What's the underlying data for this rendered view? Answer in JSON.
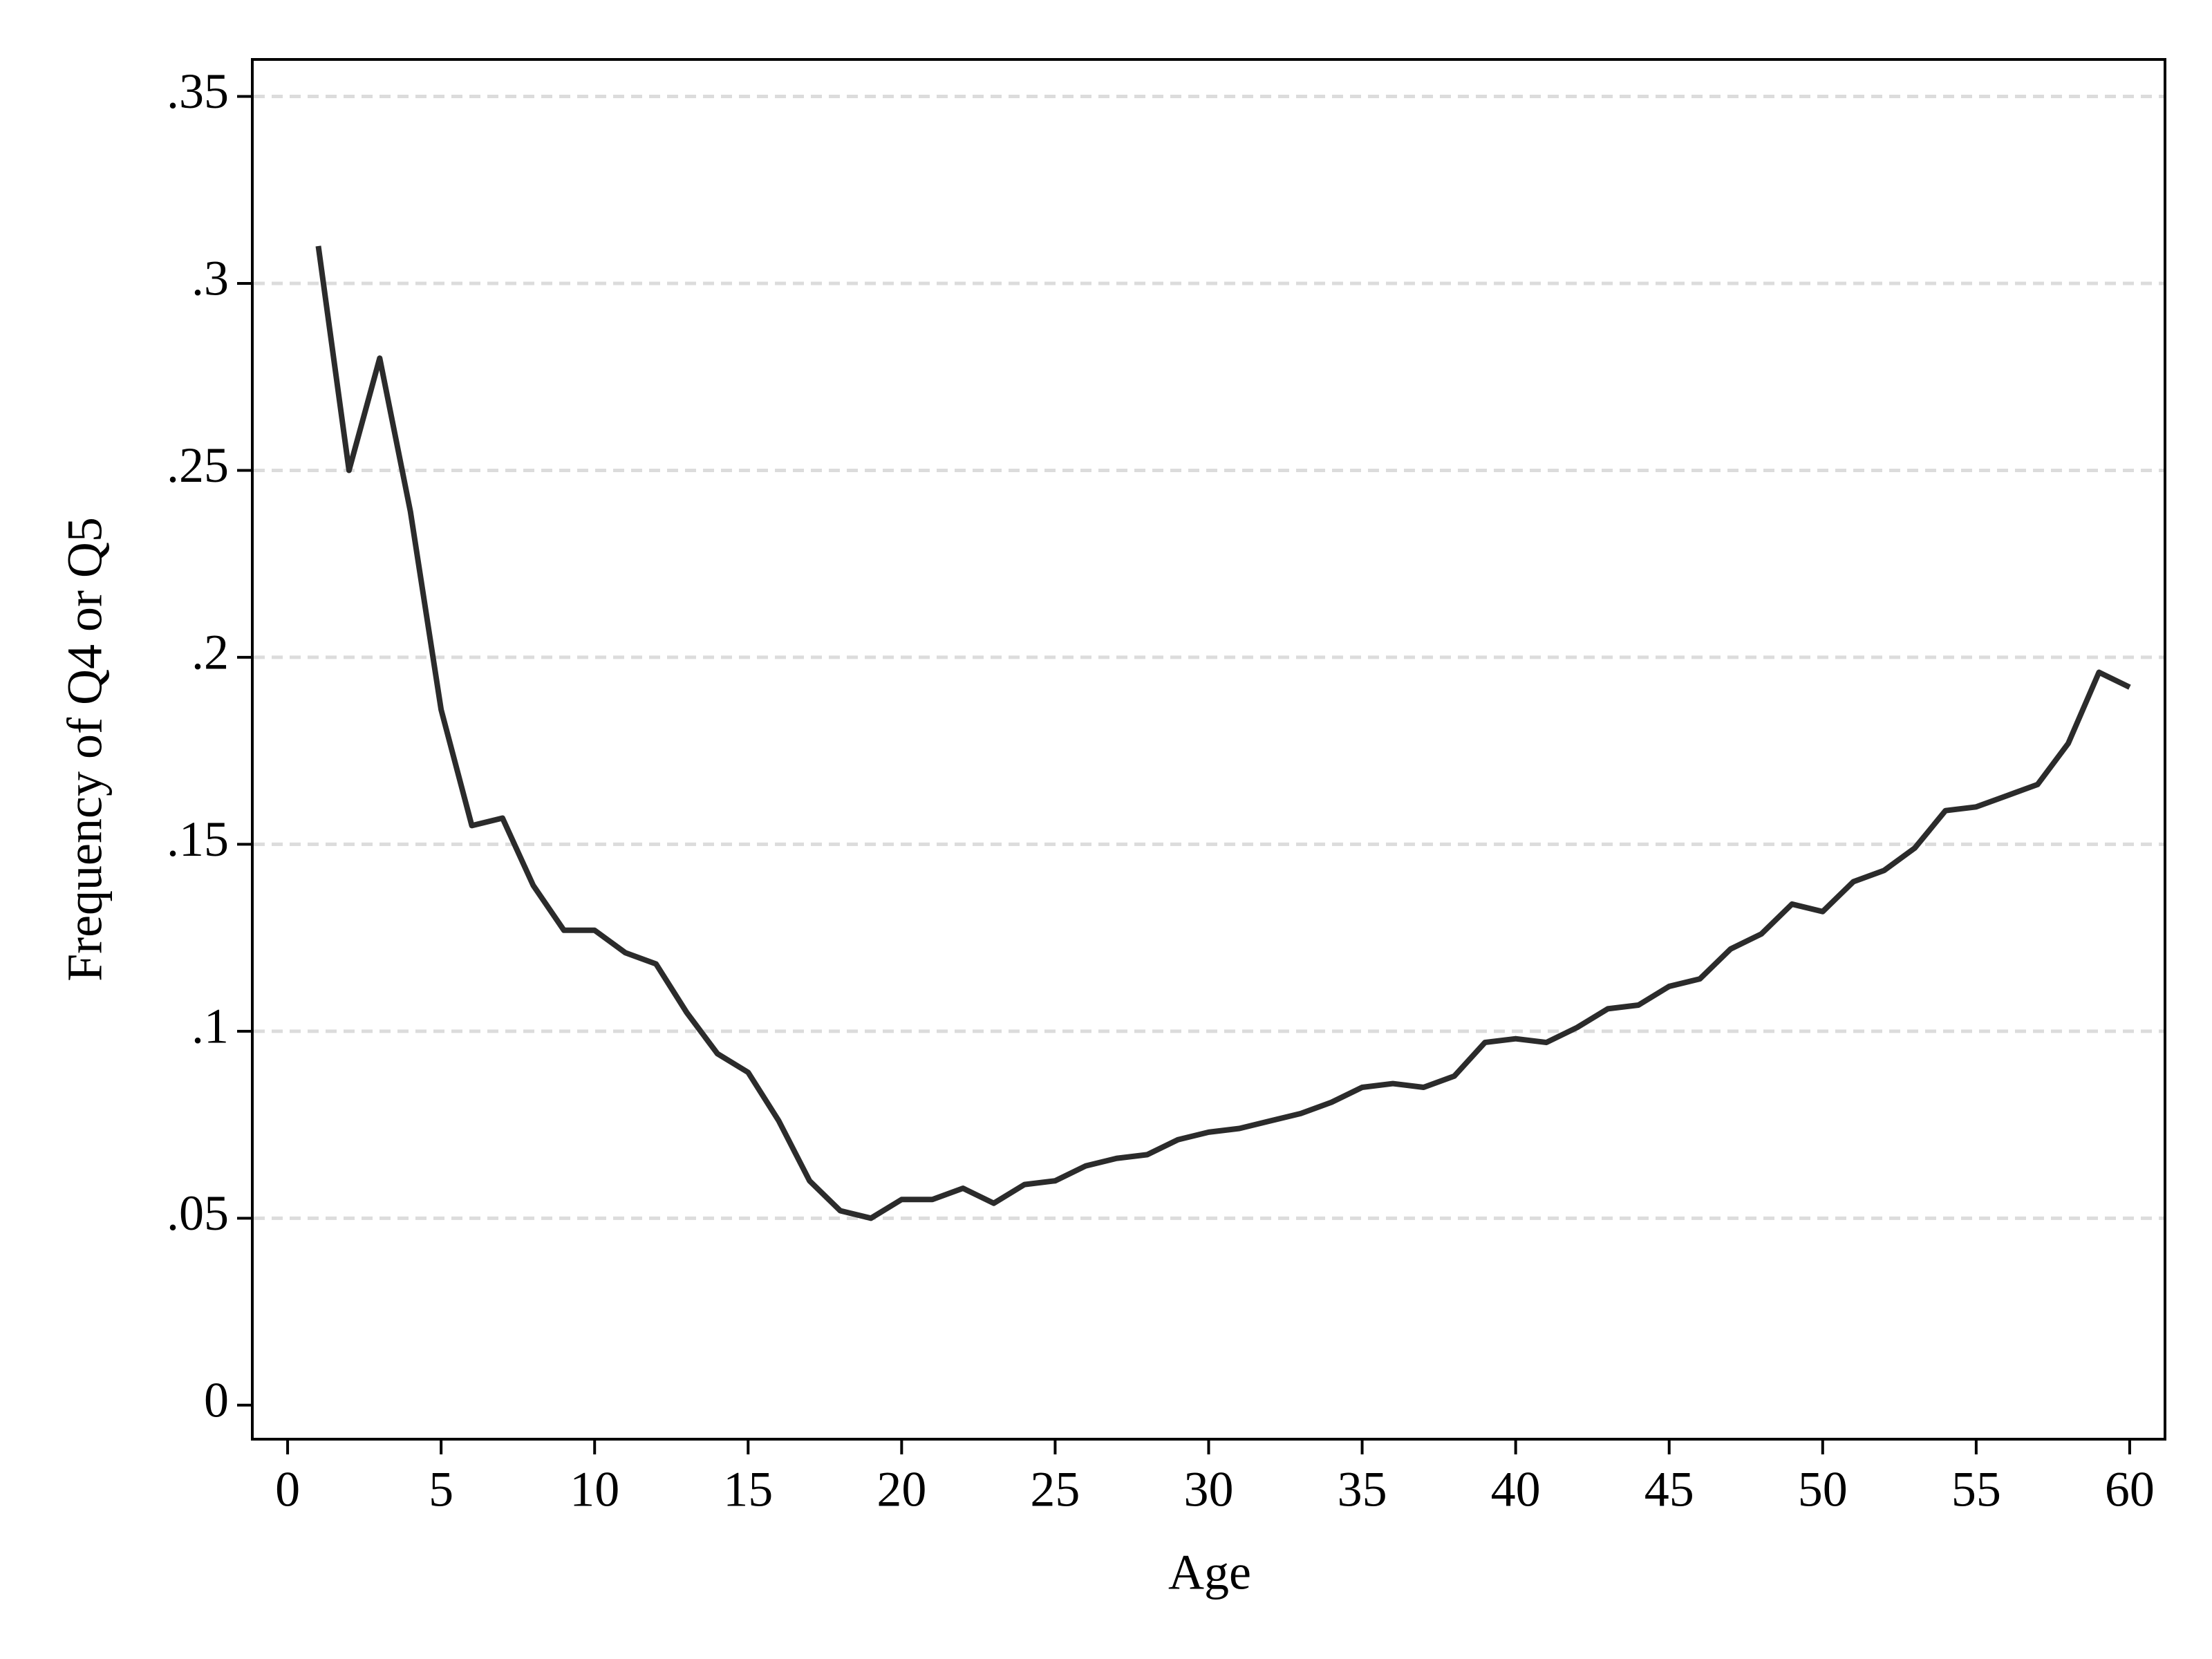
{
  "chart_data": {
    "type": "line",
    "xlabel": "Age",
    "ylabel": "Frequency of Q4 or Q5",
    "x": [
      1,
      2,
      3,
      4,
      5,
      6,
      7,
      8,
      9,
      10,
      11,
      12,
      13,
      14,
      15,
      16,
      17,
      18,
      19,
      20,
      21,
      22,
      23,
      24,
      25,
      26,
      27,
      28,
      29,
      30,
      31,
      32,
      33,
      34,
      35,
      36,
      37,
      38,
      39,
      40,
      41,
      42,
      43,
      44,
      45,
      46,
      47,
      48,
      49,
      50,
      51,
      52,
      53,
      54,
      55,
      56,
      57,
      58,
      59,
      60
    ],
    "series": [
      {
        "color": "#2b2b2b",
        "values": [
          0.31,
          0.25,
          0.28,
          0.239,
          0.186,
          0.155,
          0.157,
          0.139,
          0.127,
          0.127,
          0.121,
          0.118,
          0.105,
          0.094,
          0.089,
          0.076,
          0.06,
          0.052,
          0.05,
          0.055,
          0.055,
          0.058,
          0.054,
          0.059,
          0.06,
          0.064,
          0.066,
          0.067,
          0.071,
          0.073,
          0.074,
          0.076,
          0.078,
          0.081,
          0.085,
          0.086,
          0.085,
          0.088,
          0.097,
          0.098,
          0.097,
          0.101,
          0.106,
          0.107,
          0.112,
          0.114,
          0.122,
          0.126,
          0.134,
          0.132,
          0.14,
          0.143,
          0.149,
          0.159,
          0.16,
          0.163,
          0.166,
          0.177,
          0.196,
          0.192
        ]
      }
    ],
    "xlim": [
      -1.15,
      61.15
    ],
    "xticks": [
      0,
      5,
      10,
      15,
      20,
      25,
      30,
      35,
      40,
      45,
      50,
      55,
      60
    ],
    "ylim": [
      -0.0091,
      0.3599
    ],
    "yticks": [
      0,
      {
        "value": 0.05,
        "label": ".05"
      },
      {
        "value": 0.1,
        "label": ".1"
      },
      {
        "value": 0.15,
        "label": ".15"
      },
      {
        "value": 0.2,
        "label": ".2"
      },
      {
        "value": 0.25,
        "label": ".25"
      },
      {
        "value": 0.3,
        "label": ".3"
      },
      {
        "value": 0.35,
        "label": ".35"
      }
    ],
    "grid": true
  }
}
